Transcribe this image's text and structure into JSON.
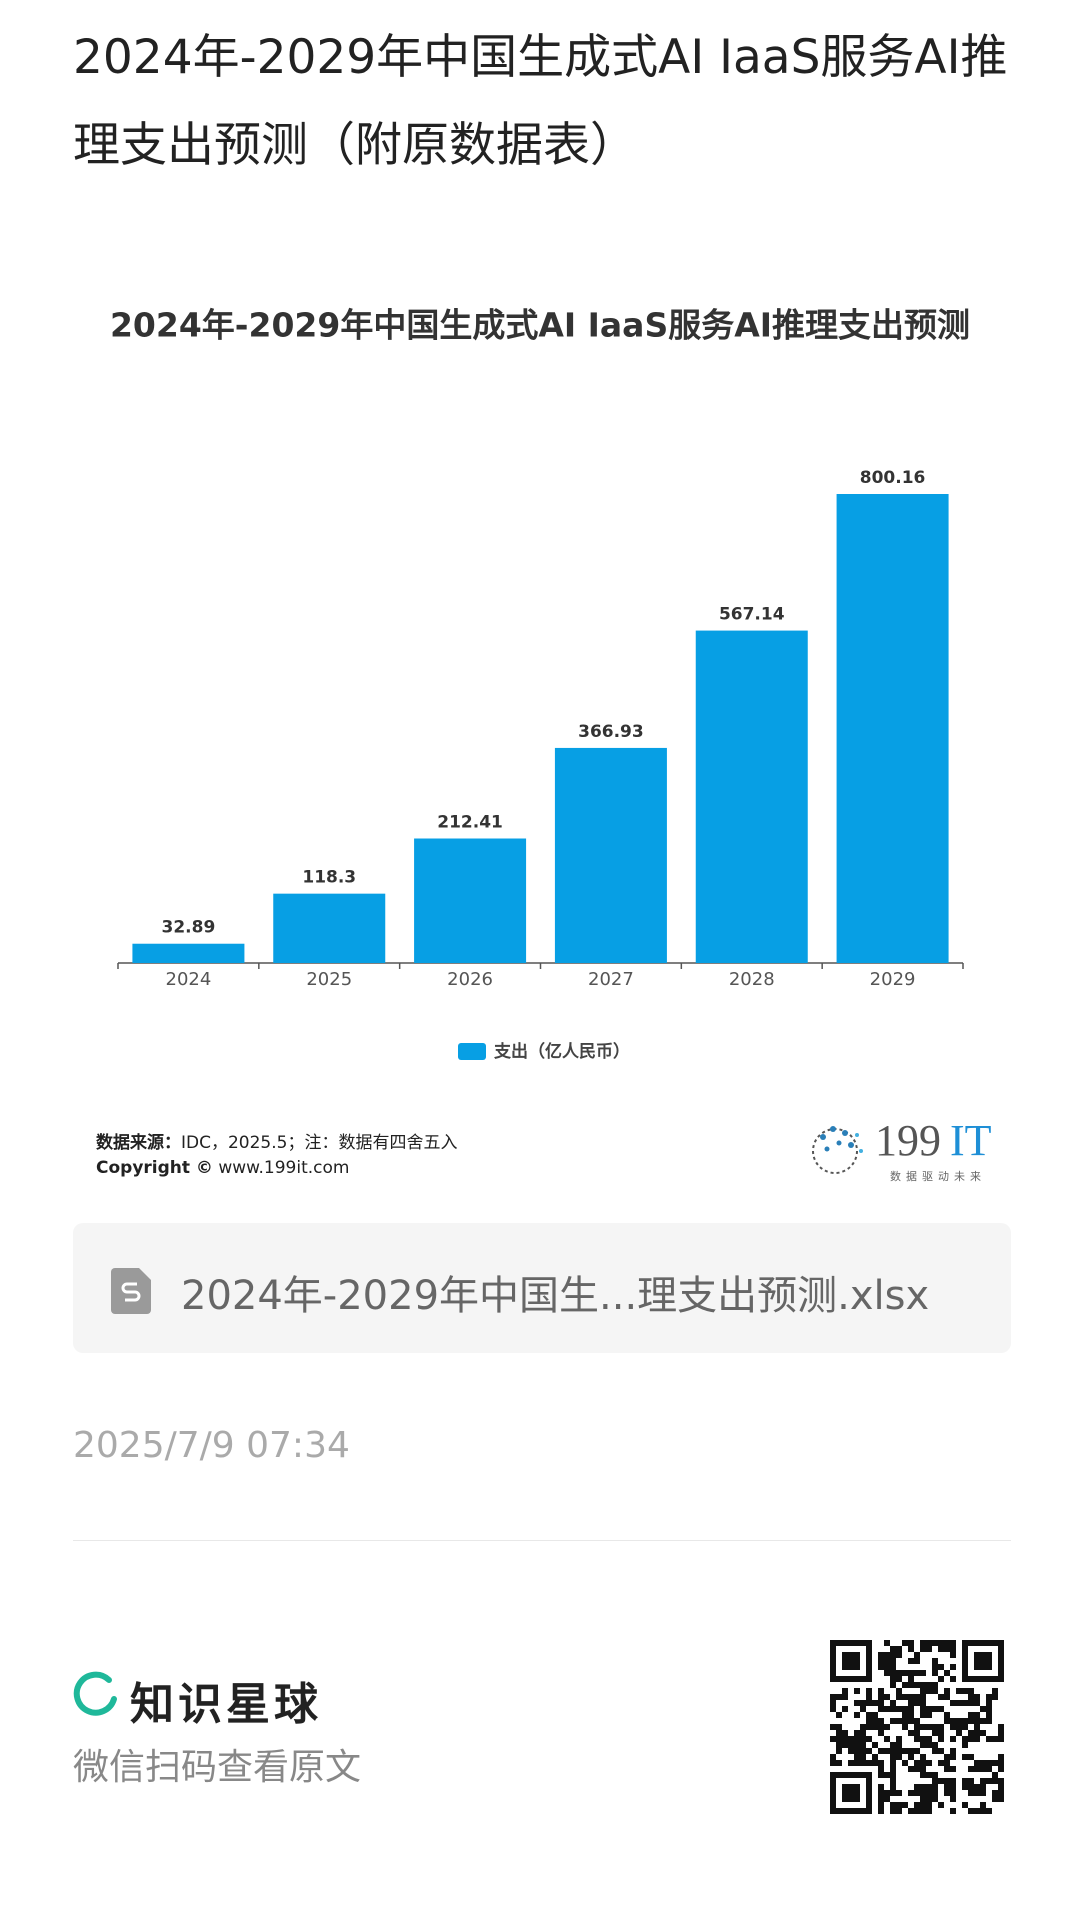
{
  "header": {
    "title": "2024年-2029年中国生成式AI IaaS服务AI推理支出预测（附原数据表）"
  },
  "chart_data": {
    "type": "bar",
    "title": "2024年-2029年中国生成式AI IaaS服务AI推理支出预测",
    "categories": [
      "2024",
      "2025",
      "2026",
      "2027",
      "2028",
      "2029"
    ],
    "series": [
      {
        "name": "支出（亿人民币）",
        "color": "#079fe4",
        "values": [
          32.89,
          118.3,
          212.41,
          366.93,
          567.14,
          800.16
        ]
      }
    ]
  },
  "source": {
    "label": "数据来源：",
    "text": "IDC，2025.5；注：数据有四舍五入",
    "copyright": "Copyright ©",
    "url": "www.199it.com"
  },
  "logo": {
    "digits": "199",
    "letters": "IT",
    "slogan": "数据驱动未来"
  },
  "attachment": {
    "filename": "2024年-2029年中国生...理支出预测.xlsx"
  },
  "timestamp": "2025/7/9 07:34",
  "footer": {
    "brand": "知识星球",
    "hint": "微信扫码查看原文"
  }
}
